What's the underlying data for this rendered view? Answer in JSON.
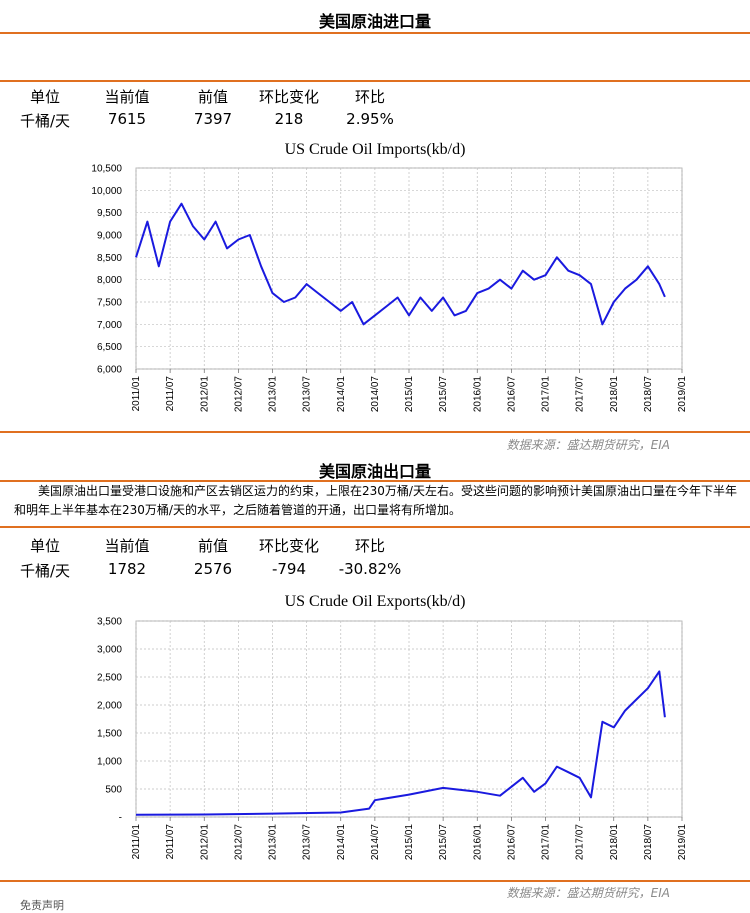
{
  "imports_section": {
    "title": "美国原油进口量",
    "stats_headers": [
      "单位",
      "当前值",
      "前值",
      "环比变化",
      "环比"
    ],
    "stats_values": [
      "千桶/天",
      "7615",
      "7397",
      "218",
      "2.95%"
    ],
    "source": "数据来源：盛达期货研究，EIA"
  },
  "exports_section": {
    "title": "美国原油出口量",
    "description": "美国原油出口量受港口设施和产区去销区运力的约束，上限在230万桶/天左右。受这些问题的影响预计美国原油出口量在今年下半年和明年上半年基本在230万桶/天的水平，之后随着管道的开通，出口量将有所增加。",
    "stats_headers": [
      "单位",
      "当前值",
      "前值",
      "环比变化",
      "环比"
    ],
    "stats_values": [
      "千桶/天",
      "1782",
      "2576",
      "-794",
      "-30.82%"
    ],
    "source": "数据来源：盛达期货研究，EIA"
  },
  "footer_text": "免责声明",
  "chart_data": [
    {
      "type": "line",
      "title": "US Crude Oil Imports(kb/d)",
      "color": "#1a1adf",
      "x_tick_labels": [
        "2011/01",
        "2011/07",
        "2012/01",
        "2012/07",
        "2013/01",
        "2013/07",
        "2014/01",
        "2014/07",
        "2015/01",
        "2015/07",
        "2016/01",
        "2016/07",
        "2017/01",
        "2017/07",
        "2018/01",
        "2018/07",
        "2019/01"
      ],
      "y_tick_labels": [
        "6,000",
        "6,500",
        "7,000",
        "7,500",
        "8,000",
        "8,500",
        "9,000",
        "9,500",
        "10,000",
        "10,500"
      ],
      "xlim": [
        "2011-01",
        "2019-01"
      ],
      "ylim": [
        6000,
        10500
      ],
      "grid": true,
      "series": [
        {
          "x": [
            "2011-01",
            "2011-03",
            "2011-05",
            "2011-07",
            "2011-09",
            "2011-11",
            "2012-01",
            "2012-03",
            "2012-05",
            "2012-07",
            "2012-09",
            "2012-11",
            "2013-01",
            "2013-03",
            "2013-05",
            "2013-07",
            "2013-09",
            "2013-11",
            "2014-01",
            "2014-03",
            "2014-05",
            "2014-07",
            "2014-09",
            "2014-11",
            "2015-01",
            "2015-03",
            "2015-05",
            "2015-07",
            "2015-09",
            "2015-11",
            "2016-01",
            "2016-03",
            "2016-05",
            "2016-07",
            "2016-09",
            "2016-11",
            "2017-01",
            "2017-03",
            "2017-05",
            "2017-07",
            "2017-09",
            "2017-11",
            "2018-01",
            "2018-03",
            "2018-05",
            "2018-07",
            "2018-09",
            "2018-10"
          ],
          "values": [
            8500,
            9300,
            8300,
            9300,
            9700,
            9200,
            8900,
            9300,
            8700,
            8900,
            9000,
            8300,
            7700,
            7500,
            7600,
            7900,
            7700,
            7500,
            7300,
            7500,
            7000,
            7200,
            7400,
            7600,
            7200,
            7600,
            7300,
            7600,
            7200,
            7300,
            7700,
            7800,
            8000,
            7800,
            8200,
            8000,
            8100,
            8500,
            8200,
            8100,
            7900,
            7000,
            7500,
            7800,
            8000,
            8300,
            7900,
            7615
          ]
        }
      ]
    },
    {
      "type": "line",
      "title": "US Crude Oil Exports(kb/d)",
      "color": "#1a1adf",
      "x_tick_labels": [
        "2011/01",
        "2011/07",
        "2012/01",
        "2012/07",
        "2013/01",
        "2013/07",
        "2014/01",
        "2014/07",
        "2015/01",
        "2015/07",
        "2016/01",
        "2016/07",
        "2017/01",
        "2017/07",
        "2018/01",
        "2018/07",
        "2019/01"
      ],
      "y_tick_labels": [
        "-",
        "500",
        "1,000",
        "1,500",
        "2,000",
        "2,500",
        "3,000",
        "3,500"
      ],
      "xlim": [
        "2011-01",
        "2019-01"
      ],
      "ylim": [
        0,
        3500
      ],
      "grid": true,
      "series": [
        {
          "x": [
            "2011-01",
            "2012-01",
            "2013-01",
            "2014-01",
            "2014-06",
            "2014-07",
            "2015-01",
            "2015-07",
            "2016-01",
            "2016-05",
            "2016-09",
            "2016-11",
            "2017-01",
            "2017-03",
            "2017-05",
            "2017-07",
            "2017-09",
            "2017-11",
            "2018-01",
            "2018-03",
            "2018-05",
            "2018-07",
            "2018-09",
            "2018-10"
          ],
          "values": [
            40,
            45,
            60,
            80,
            150,
            300,
            400,
            520,
            450,
            380,
            700,
            450,
            600,
            900,
            800,
            700,
            350,
            1700,
            1600,
            1900,
            2100,
            2300,
            2600,
            1782
          ]
        }
      ]
    }
  ]
}
